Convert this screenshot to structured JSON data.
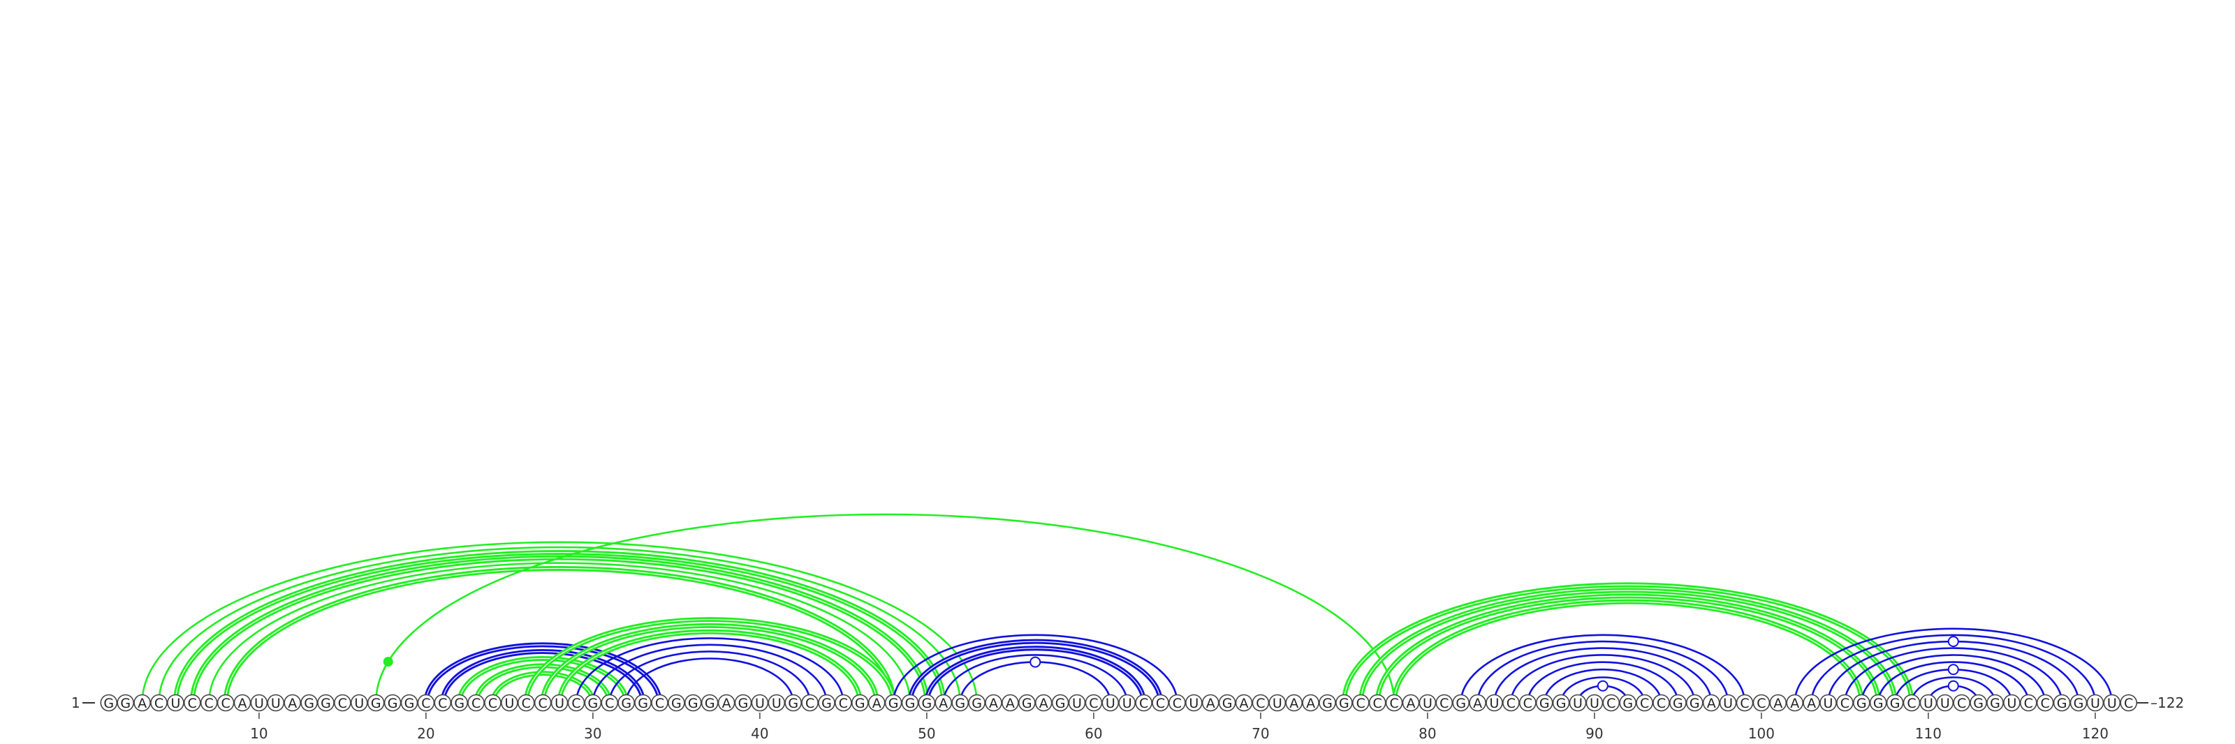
{
  "diagram": {
    "sequence": "GGACUCCCAUUAGGCUGGGCCGCCUCCUCGCGGCGGGAGUUGCGCGAGGGAGGAAGAGUCUUCCCUAGACUAAGGCCCAUCGAUCCGGUUCGCCGGAUCCAAAUCGGGCUUCGGUCCGGUUC",
    "start_label": "1",
    "end_label": "122",
    "ticks": [
      10,
      20,
      30,
      40,
      50,
      60,
      70,
      80,
      90,
      100,
      110,
      120
    ],
    "colors": {
      "green": "#22ee22",
      "blue": "#1111dd"
    },
    "arcs": [
      {
        "i": 3,
        "j": 53,
        "color": "green",
        "style": "thin"
      },
      {
        "i": 4,
        "j": 52,
        "color": "green",
        "style": "thin"
      },
      {
        "i": 5,
        "j": 51,
        "color": "green",
        "style": "bold"
      },
      {
        "i": 6,
        "j": 50,
        "color": "green",
        "style": "bold"
      },
      {
        "i": 7,
        "j": 49,
        "color": "green",
        "style": "thin"
      },
      {
        "i": 8,
        "j": 48,
        "color": "green",
        "style": "bold"
      },
      {
        "i": 17,
        "j": 78,
        "color": "green",
        "style": "thin"
      },
      {
        "i": 20,
        "j": 34,
        "color": "blue",
        "style": "bold"
      },
      {
        "i": 21,
        "j": 33,
        "color": "blue",
        "style": "bold"
      },
      {
        "i": 22,
        "j": 32,
        "color": "green",
        "style": "bold"
      },
      {
        "i": 23,
        "j": 31,
        "color": "green",
        "style": "bold"
      },
      {
        "i": 24,
        "j": 30,
        "color": "green",
        "style": "bold"
      },
      {
        "i": 26,
        "j": 48,
        "color": "green",
        "style": "bold"
      },
      {
        "i": 27,
        "j": 47,
        "color": "green",
        "style": "bold"
      },
      {
        "i": 28,
        "j": 46,
        "color": "green",
        "style": "bold"
      },
      {
        "i": 29,
        "j": 45,
        "color": "blue",
        "style": "thin"
      },
      {
        "i": 30,
        "j": 44,
        "color": "blue",
        "style": "thin"
      },
      {
        "i": 31,
        "j": 43,
        "color": "blue",
        "style": "thin"
      },
      {
        "i": 32,
        "j": 42,
        "color": "blue",
        "style": "thin"
      },
      {
        "i": 48,
        "j": 65,
        "color": "blue",
        "style": "thin"
      },
      {
        "i": 49,
        "j": 64,
        "color": "blue",
        "style": "bold"
      },
      {
        "i": 50,
        "j": 63,
        "color": "blue",
        "style": "bold"
      },
      {
        "i": 51,
        "j": 62,
        "color": "blue",
        "style": "thin"
      },
      {
        "i": 52,
        "j": 61,
        "color": "blue",
        "style": "thin"
      },
      {
        "i": 75,
        "j": 109,
        "color": "green",
        "style": "bold"
      },
      {
        "i": 76,
        "j": 108,
        "color": "green",
        "style": "bold"
      },
      {
        "i": 77,
        "j": 107,
        "color": "green",
        "style": "bold"
      },
      {
        "i": 78,
        "j": 106,
        "color": "green",
        "style": "bold"
      },
      {
        "i": 82,
        "j": 99,
        "color": "blue",
        "style": "thin"
      },
      {
        "i": 83,
        "j": 98,
        "color": "blue",
        "style": "thin"
      },
      {
        "i": 84,
        "j": 97,
        "color": "blue",
        "style": "thin"
      },
      {
        "i": 85,
        "j": 96,
        "color": "blue",
        "style": "thin"
      },
      {
        "i": 86,
        "j": 95,
        "color": "blue",
        "style": "thin"
      },
      {
        "i": 87,
        "j": 94,
        "color": "blue",
        "style": "thin"
      },
      {
        "i": 88,
        "j": 93,
        "color": "blue",
        "style": "thin"
      },
      {
        "i": 89,
        "j": 92,
        "color": "blue",
        "style": "thin"
      },
      {
        "i": 102,
        "j": 121,
        "color": "blue",
        "style": "thin"
      },
      {
        "i": 103,
        "j": 120,
        "color": "blue",
        "style": "thin"
      },
      {
        "i": 104,
        "j": 119,
        "color": "blue",
        "style": "thin"
      },
      {
        "i": 105,
        "j": 118,
        "color": "blue",
        "style": "thin"
      },
      {
        "i": 106,
        "j": 117,
        "color": "blue",
        "style": "thin"
      },
      {
        "i": 107,
        "j": 116,
        "color": "blue",
        "style": "thin"
      },
      {
        "i": 108,
        "j": 115,
        "color": "blue",
        "style": "thin"
      },
      {
        "i": 109,
        "j": 114,
        "color": "blue",
        "style": "thin"
      },
      {
        "i": 110,
        "j": 113,
        "color": "blue",
        "style": "thin"
      }
    ],
    "markers": [
      {
        "arc": "17-78",
        "type": "filled",
        "color": "green"
      },
      {
        "arc": "52-61",
        "type": "open",
        "color": "blue"
      },
      {
        "arc": "89-92",
        "type": "open",
        "color": "blue"
      },
      {
        "arc": "110-113",
        "type": "open",
        "color": "blue"
      },
      {
        "arc": "108-115",
        "type": "open",
        "color": "blue"
      },
      {
        "arc": "104-119",
        "type": "open",
        "color": "blue"
      }
    ]
  }
}
